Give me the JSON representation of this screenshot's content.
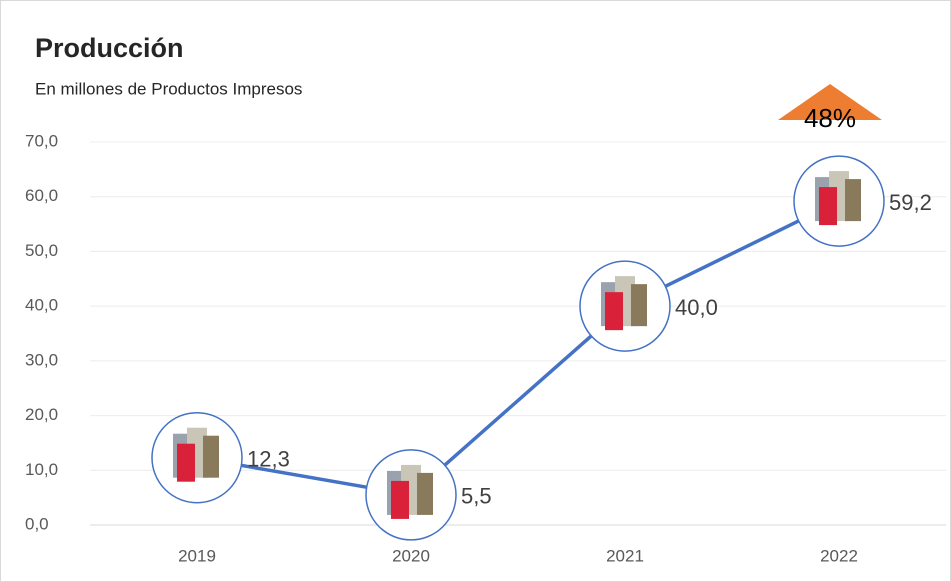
{
  "chart_data": {
    "type": "line",
    "title": "Producción",
    "subtitle": "En millones de Productos Impresos",
    "categories": [
      "2019",
      "2020",
      "2021",
      "2022"
    ],
    "series": [
      {
        "name": "Producción",
        "color": "#4472c4",
        "values": [
          12.3,
          5.5,
          40.0,
          59.2
        ],
        "value_labels": [
          "12,3",
          "5,5",
          "40,0",
          "59,2"
        ]
      }
    ],
    "ylim": [
      0,
      70
    ],
    "yticks": [
      {
        "value": 0,
        "label": "0,0"
      },
      {
        "value": 10,
        "label": "10,0"
      },
      {
        "value": 20,
        "label": "20,0"
      },
      {
        "value": 30,
        "label": "30,0"
      },
      {
        "value": 40,
        "label": "40,0"
      },
      {
        "value": 50,
        "label": "50,0"
      },
      {
        "value": 60,
        "label": "60,0"
      },
      {
        "value": 70,
        "label": "70,0"
      }
    ],
    "grid": true,
    "annotation": "48%",
    "annotation_color": "#ed7d31"
  }
}
